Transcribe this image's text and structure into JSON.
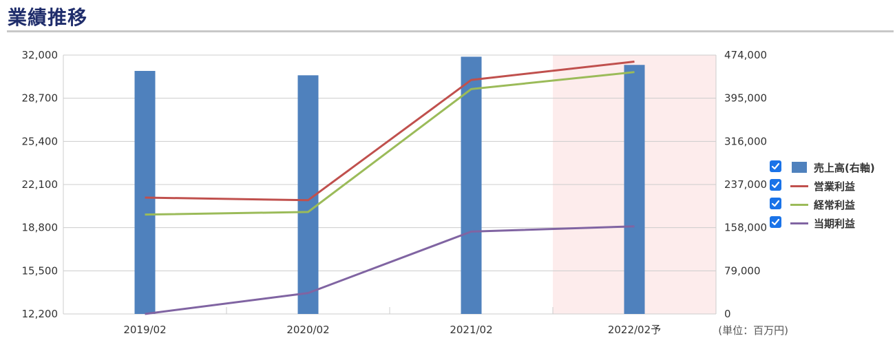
{
  "header": {
    "title": "業績推移"
  },
  "colors": {
    "sales": "#4f81bd",
    "operating": "#c0504d",
    "ordinary": "#9bbb59",
    "net": "#8064a2",
    "forecast_band": "#fdecec",
    "grid": "#cccccc"
  },
  "chart_data": {
    "type": "bar",
    "categories": [
      "2019/02",
      "2020/02",
      "2021/02",
      "2022/02予"
    ],
    "forecast_category": "2022/02予",
    "left_axis": {
      "ylim": [
        12200,
        32000
      ],
      "ticks": [
        "32,000",
        "28,700",
        "25,400",
        "22,100",
        "18,800",
        "15,500",
        "12,200"
      ]
    },
    "right_axis": {
      "ylim": [
        0,
        474000
      ],
      "ticks": [
        "474,000",
        "395,000",
        "316,000",
        "237,000",
        "158,000",
        "79,000",
        "0"
      ]
    },
    "unit_label": "(単位：百万円)",
    "grid": true,
    "legend_position": "right",
    "series": [
      {
        "name": "売上高(右軸)",
        "type": "bar",
        "axis": "right",
        "color_key": "sales",
        "values": [
          445000,
          437000,
          471000,
          456000
        ]
      },
      {
        "name": "営業利益",
        "type": "line",
        "axis": "left",
        "color_key": "operating",
        "values": [
          21100,
          20900,
          30100,
          31500
        ]
      },
      {
        "name": "経常利益",
        "type": "line",
        "axis": "left",
        "color_key": "ordinary",
        "values": [
          19800,
          20000,
          29400,
          30700
        ]
      },
      {
        "name": "当期利益",
        "type": "line",
        "axis": "left",
        "color_key": "net",
        "values": [
          12200,
          13800,
          18500,
          18900
        ]
      }
    ]
  }
}
